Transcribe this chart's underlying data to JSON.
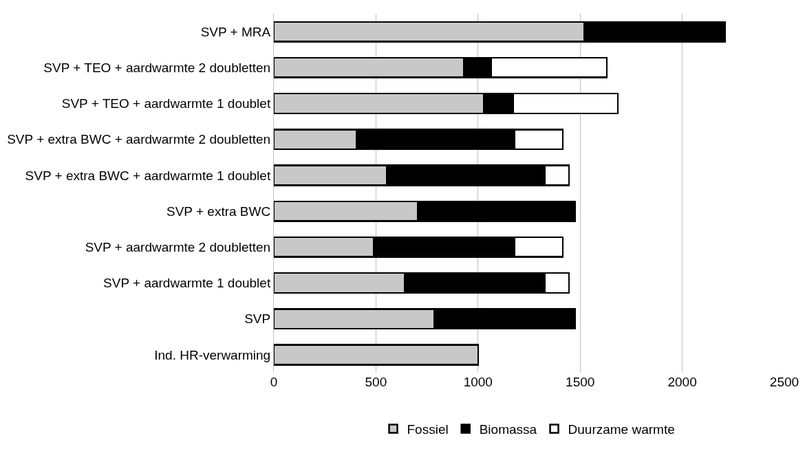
{
  "chart_data": {
    "type": "bar",
    "orientation": "horizontal",
    "stacked": true,
    "categories": [
      "SVP + MRA",
      "SVP + TEO + aardwarmte 2 doubletten",
      "SVP + TEO + aardwarmte 1 doublet",
      "SVP + extra BWC + aardwarmte 2 doubletten",
      "SVP + extra BWC + aardwarmte 1 doublet",
      "SVP + extra BWC",
      "SVP + aardwarmte 2 doubletten",
      "SVP + aardwarmte 1 doublet",
      "SVP",
      "Ind. HR-verwarming"
    ],
    "series": [
      {
        "name": "Fossiel",
        "color": "#c8c8c8",
        "values": [
          1520,
          930,
          1030,
          405,
          555,
          705,
          490,
          640,
          785,
          1000
        ]
      },
      {
        "name": "Biomassa",
        "color": "#000000",
        "values": [
          690,
          135,
          140,
          775,
          770,
          770,
          690,
          685,
          690,
          null
        ]
      },
      {
        "name": "Duurzame warmte",
        "color": "#ffffff",
        "values": [
          null,
          565,
          515,
          235,
          120,
          null,
          235,
          120,
          null,
          null
        ]
      }
    ],
    "xlim": [
      0,
      2500
    ],
    "xticks": [
      0,
      500,
      1000,
      1500,
      2000,
      2500
    ],
    "grid": "x",
    "legend": "bottom"
  }
}
